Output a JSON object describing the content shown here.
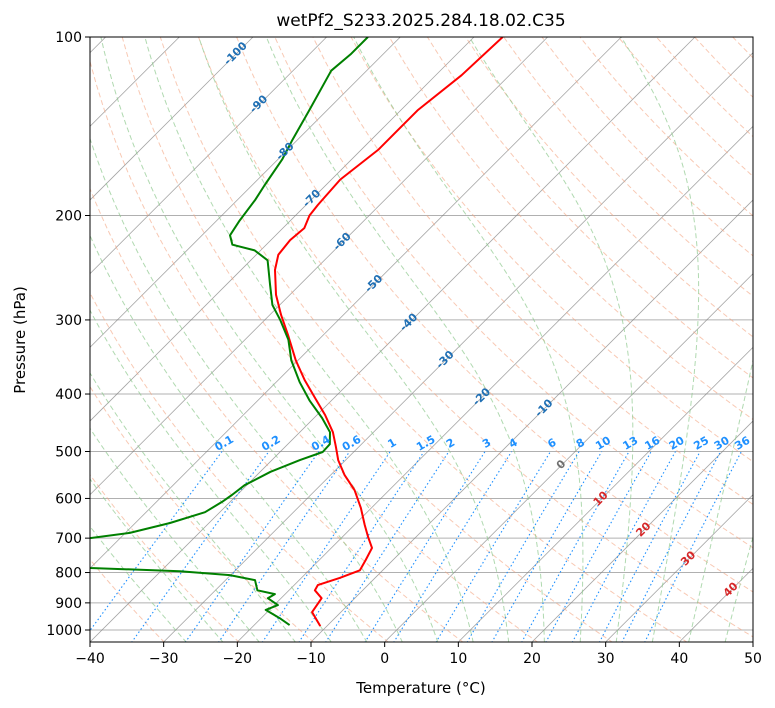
{
  "chart_data": {
    "type": "line",
    "subtype": "skew-t log-p",
    "title": "wetPf2_S233.2025.284.18.02.C35",
    "xlabel": "Temperature (°C)",
    "ylabel": "Pressure (hPa)",
    "xlim": [
      -40,
      50
    ],
    "ylim": [
      1050,
      100
    ],
    "yscale": "log",
    "grid": true,
    "x_ticks": [
      "−40",
      "−30",
      "−20",
      "−10",
      "0",
      "10",
      "20",
      "30",
      "40",
      "50"
    ],
    "x_tick_values": [
      -40,
      -30,
      -20,
      -10,
      0,
      10,
      20,
      30,
      40,
      50
    ],
    "y_ticks": [
      "100",
      "200",
      "300",
      "400",
      "500",
      "600",
      "700",
      "800",
      "900",
      "1000"
    ],
    "y_tick_values": [
      100,
      200,
      300,
      400,
      500,
      600,
      700,
      800,
      900,
      1000
    ],
    "series": [
      {
        "name": "temperature",
        "color": "#ff0000",
        "pressure": [
          985,
          933,
          901,
          884,
          857,
          840,
          817,
          793,
          762,
          727,
          697,
          665,
          623,
          581,
          548,
          517,
          490,
          464,
          434,
          406,
          379,
          351,
          318,
          294,
          272,
          247,
          233,
          220,
          210,
          200,
          192,
          174,
          155,
          133,
          116,
          100
        ],
        "temperature": [
          -10.9,
          -13.9,
          -14.3,
          -14.5,
          -16.5,
          -16.8,
          -14.8,
          -13.1,
          -13.7,
          -14.5,
          -16.5,
          -18.6,
          -21.4,
          -24.7,
          -28.1,
          -31.0,
          -33.2,
          -35.5,
          -38.9,
          -42.6,
          -46.4,
          -50.3,
          -54.8,
          -58.5,
          -61.9,
          -65.4,
          -67.0,
          -67.4,
          -67.1,
          -68.1,
          -68.4,
          -68.8,
          -67.7,
          -67.7,
          -66.5,
          -66.1
        ]
      },
      {
        "name": "dewpoint",
        "color": "#008000",
        "pressure": [
          981,
          955,
          925,
          908,
          884,
          870,
          857,
          824,
          808,
          796,
          786,
          760,
          740,
          700,
          686,
          660,
          633,
          608,
          592,
          570,
          541,
          517,
          501,
          486,
          464,
          439,
          410,
          382,
          351,
          324,
          300,
          283,
          262,
          238,
          229,
          224,
          216,
          204,
          188,
          178,
          161,
          149,
          133,
          114,
          107,
          100
        ],
        "temperature": [
          -15.2,
          -17.5,
          -20.5,
          -19.5,
          -21.8,
          -21.4,
          -24.3,
          -26.0,
          -30.1,
          -37.4,
          -50.0,
          -65.0,
          -75.0,
          -54.1,
          -49.4,
          -45.3,
          -42.0,
          -41.1,
          -40.7,
          -40.3,
          -38.6,
          -36.2,
          -34.2,
          -34.3,
          -35.9,
          -38.9,
          -43.0,
          -46.8,
          -50.9,
          -54.1,
          -57.9,
          -61.0,
          -64.0,
          -67.7,
          -70.8,
          -74.6,
          -76.2,
          -76.9,
          -77.6,
          -78.3,
          -79.4,
          -80.7,
          -82.4,
          -84.8,
          -84.4,
          -84.4
        ]
      }
    ],
    "mixing_ratio_labels": [
      "0.1",
      "0.2",
      "0.4",
      "0.6",
      "1",
      "1.5",
      "2",
      "3",
      "4",
      "6",
      "8",
      "10",
      "13",
      "16",
      "20",
      "25",
      "30",
      "36"
    ],
    "mixing_ratio_values": [
      0.1,
      0.2,
      0.4,
      0.6,
      1,
      1.5,
      2,
      3,
      4,
      6,
      8,
      10,
      13,
      16,
      20,
      25,
      30,
      36
    ],
    "isotherm_labels": [
      "-100",
      "-90",
      "-80",
      "-70",
      "-60",
      "-50",
      "-40",
      "-30",
      "-20",
      "-10",
      "0",
      "10",
      "20",
      "30",
      "40"
    ],
    "isotherm_label_values": [
      -100,
      -90,
      -80,
      -70,
      -60,
      -50,
      -40,
      -30,
      -20,
      -10,
      0,
      10,
      20,
      30,
      40
    ],
    "colors": {
      "isotherm": "#808080",
      "dry_adiabat": "#f4a582",
      "moist_adiabat": "#8fc98f",
      "mixing_ratio": "#1e90ff",
      "isotherm_label_cold": "#1f6fb4",
      "isotherm_label_zero": "#707070",
      "isotherm_label_warm": "#d62728"
    }
  }
}
